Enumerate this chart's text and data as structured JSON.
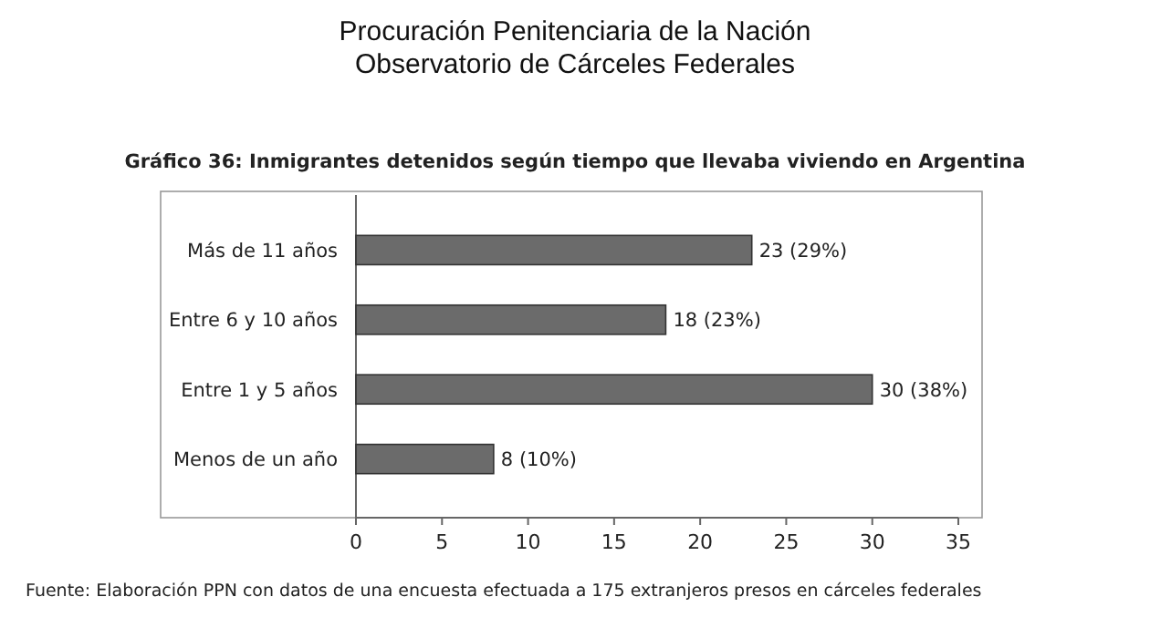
{
  "chart_data": {
    "type": "bar",
    "orientation": "horizontal",
    "title": "Gráfico 36: Inmigrantes detenidos según tiempo que llevaba viviendo en Argentina",
    "annotations": [
      "Procuración Penitenciaria de la Nación",
      "Observatorio de Cárceles Federales",
      "Fuente: Elaboración PPN con datos de una encuesta efectuada a 175 extranjeros presos en cárceles federales"
    ],
    "categories": [
      "Más de 11 años",
      "Entre 6 y 10 años",
      "Entre 1 y 5 años",
      "Menos de un año"
    ],
    "values": [
      23,
      18,
      30,
      8
    ],
    "value_labels": [
      "23 (29%)",
      "18 (23%)",
      "30 (38%)",
      "8 (10%)"
    ],
    "color": "#6b6b6b",
    "xlim": [
      0,
      35
    ],
    "xticks": [
      0,
      5,
      10,
      15,
      20,
      25,
      30,
      35
    ],
    "grid": false
  }
}
